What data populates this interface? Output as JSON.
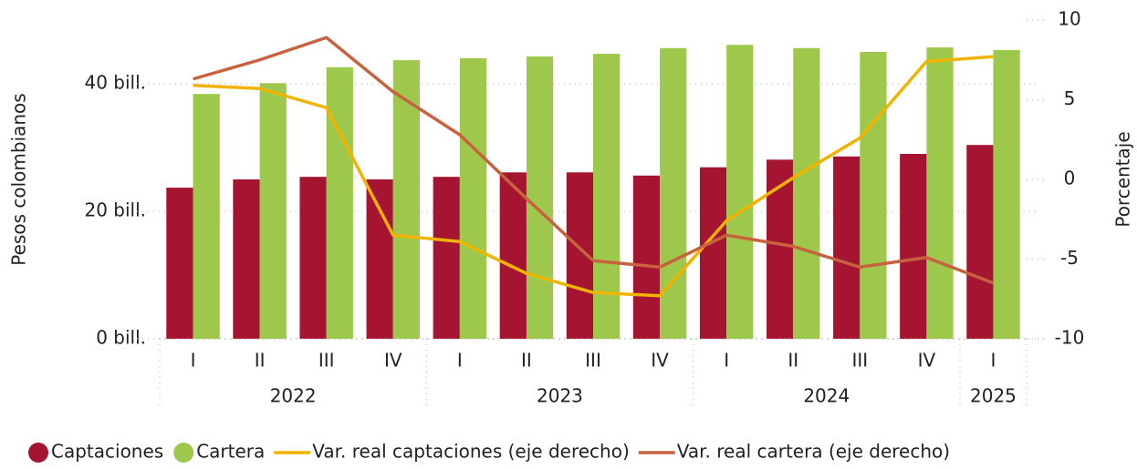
{
  "chart_data": {
    "type": "bar_line",
    "categories": [
      "I",
      "II",
      "III",
      "IV",
      "I",
      "II",
      "III",
      "IV",
      "I",
      "II",
      "III",
      "IV",
      "I"
    ],
    "x_groups": [
      {
        "label": "2022",
        "count": 4
      },
      {
        "label": "2023",
        "count": 4
      },
      {
        "label": "2024",
        "count": 4
      },
      {
        "label": "2025",
        "count": 1
      }
    ],
    "series": [
      {
        "name": "Captaciones",
        "kind": "bar",
        "color": "#a51431",
        "values": [
          23.7,
          25,
          25.4,
          25,
          25.4,
          26.1,
          26.1,
          25.6,
          26.9,
          28.1,
          28.6,
          29,
          30.4
        ]
      },
      {
        "name": "Cartera",
        "kind": "bar",
        "color": "#9dc84b",
        "values": [
          38.4,
          40.1,
          42.6,
          43.7,
          44,
          44.3,
          44.7,
          45.6,
          46.1,
          45.6,
          45,
          45.7,
          45.3
        ]
      },
      {
        "name": "Var. real captaciones (eje derecho)",
        "kind": "line",
        "axis": "y2",
        "color": "#f0b400",
        "values": [
          5.9,
          5.7,
          4.5,
          -3.5,
          -3.9,
          -5.9,
          -7.1,
          -7.3,
          -2.6,
          0.1,
          2.6,
          7.4,
          7.7
        ]
      },
      {
        "name": "Var. real cartera (eje derecho)",
        "kind": "line",
        "axis": "y2",
        "color": "#c8623e",
        "values": [
          6.3,
          7.5,
          8.9,
          5.5,
          2.8,
          -1.2,
          -5.1,
          -5.5,
          -3.5,
          -4.2,
          -5.5,
          -4.9,
          -6.5
        ]
      }
    ],
    "ylabel": "Pesos colombianos",
    "y2label": "Porcentaje",
    "ylim": [
      0,
      50
    ],
    "yticks": [
      {
        "value": 0,
        "label": "0 bill."
      },
      {
        "value": 20,
        "label": "20 bill."
      },
      {
        "value": 40,
        "label": "40 bill."
      }
    ],
    "y2lim": [
      -10,
      10
    ],
    "y2ticks": [
      -10,
      -5,
      0,
      5,
      10
    ],
    "grid": true,
    "legend": "bottom"
  }
}
